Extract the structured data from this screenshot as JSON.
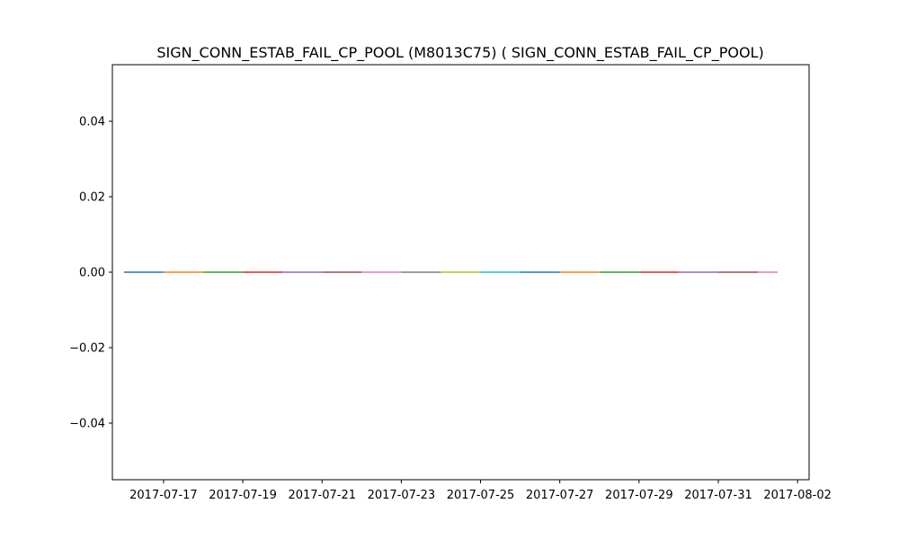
{
  "chart_data": {
    "type": "line",
    "title": "SIGN_CONN_ESTAB_FAIL_CP_POOL (M8013C75) ( SIGN_CONN_ESTAB_FAIL_CP_POOL)",
    "xlabel": "",
    "ylabel": "",
    "x_axis": "date",
    "xlim": [
      "2017-07-15T17:00",
      "2017-08-02T07:00"
    ],
    "ylim": [
      -0.055,
      0.055
    ],
    "grid": false,
    "x_ticks": [
      "2017-07-17",
      "2017-07-19",
      "2017-07-21",
      "2017-07-23",
      "2017-07-25",
      "2017-07-27",
      "2017-07-29",
      "2017-07-31",
      "2017-08-02"
    ],
    "y_ticks": [
      0.04,
      0.02,
      0.0,
      -0.02,
      -0.04
    ],
    "y_tick_labels": [
      "0.04",
      "0.02",
      "0.00",
      "−0.02",
      "−0.04"
    ],
    "segment_colors": [
      "#1f77b4",
      "#ff7f0e",
      "#2ca02c",
      "#d62728",
      "#9467bd",
      "#8c564b",
      "#e377c2",
      "#7f7f7f",
      "#bcbd22",
      "#17becf"
    ],
    "segments": [
      {
        "x": [
          "2017-07-16",
          "2017-07-17"
        ],
        "y": [
          0,
          0
        ]
      },
      {
        "x": [
          "2017-07-17",
          "2017-07-18"
        ],
        "y": [
          0,
          0
        ]
      },
      {
        "x": [
          "2017-07-18",
          "2017-07-19"
        ],
        "y": [
          0,
          0
        ]
      },
      {
        "x": [
          "2017-07-19",
          "2017-07-20"
        ],
        "y": [
          0,
          0
        ]
      },
      {
        "x": [
          "2017-07-20",
          "2017-07-21"
        ],
        "y": [
          0,
          0
        ]
      },
      {
        "x": [
          "2017-07-21",
          "2017-07-22"
        ],
        "y": [
          0,
          0
        ]
      },
      {
        "x": [
          "2017-07-22",
          "2017-07-23"
        ],
        "y": [
          0,
          0
        ]
      },
      {
        "x": [
          "2017-07-23",
          "2017-07-24"
        ],
        "y": [
          0,
          0
        ]
      },
      {
        "x": [
          "2017-07-24",
          "2017-07-25"
        ],
        "y": [
          0,
          0
        ]
      },
      {
        "x": [
          "2017-07-25",
          "2017-07-26"
        ],
        "y": [
          0,
          0
        ]
      },
      {
        "x": [
          "2017-07-26",
          "2017-07-27"
        ],
        "y": [
          0,
          0
        ]
      },
      {
        "x": [
          "2017-07-27",
          "2017-07-28"
        ],
        "y": [
          0,
          0
        ]
      },
      {
        "x": [
          "2017-07-28",
          "2017-07-29"
        ],
        "y": [
          0,
          0
        ]
      },
      {
        "x": [
          "2017-07-29",
          "2017-07-30"
        ],
        "y": [
          0,
          0
        ]
      },
      {
        "x": [
          "2017-07-30",
          "2017-07-31"
        ],
        "y": [
          0,
          0
        ]
      },
      {
        "x": [
          "2017-07-31",
          "2017-08-01"
        ],
        "y": [
          0,
          0
        ]
      },
      {
        "x": [
          "2017-08-01",
          "2017-08-01T12:00"
        ],
        "y": [
          0,
          0
        ]
      }
    ]
  }
}
